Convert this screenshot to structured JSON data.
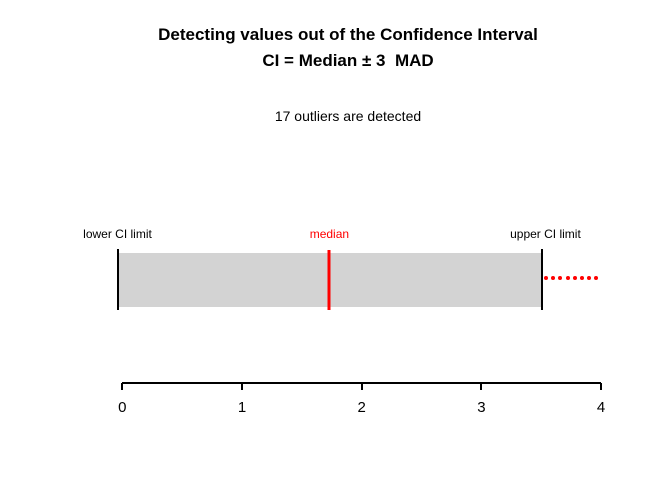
{
  "chart_data": {
    "type": "interval",
    "title_line1": "Detecting values out of the Confidence Interval",
    "title_line2": "CI = Median ± 3  MAD",
    "subtitle": "17 outliers are detected",
    "outliers_detected": 17,
    "labels": {
      "lower": "lower CI limit",
      "median": "median",
      "upper": "upper CI limit"
    },
    "interval": {
      "lower": -0.04,
      "median": 1.73,
      "upper": 3.51
    },
    "outlier_points_x": [
      3.54,
      3.6,
      3.66,
      3.72,
      3.78,
      3.84,
      3.9,
      3.96
    ],
    "xaxis": {
      "ticks": [
        0,
        1,
        2,
        3,
        4
      ],
      "range": [
        0,
        4
      ]
    },
    "legend": "none",
    "grid": false,
    "colors": {
      "bar_fill": "#d3d3d3",
      "highlight": "#ff0000",
      "axis": "#000000",
      "background": "#ffffff"
    }
  }
}
